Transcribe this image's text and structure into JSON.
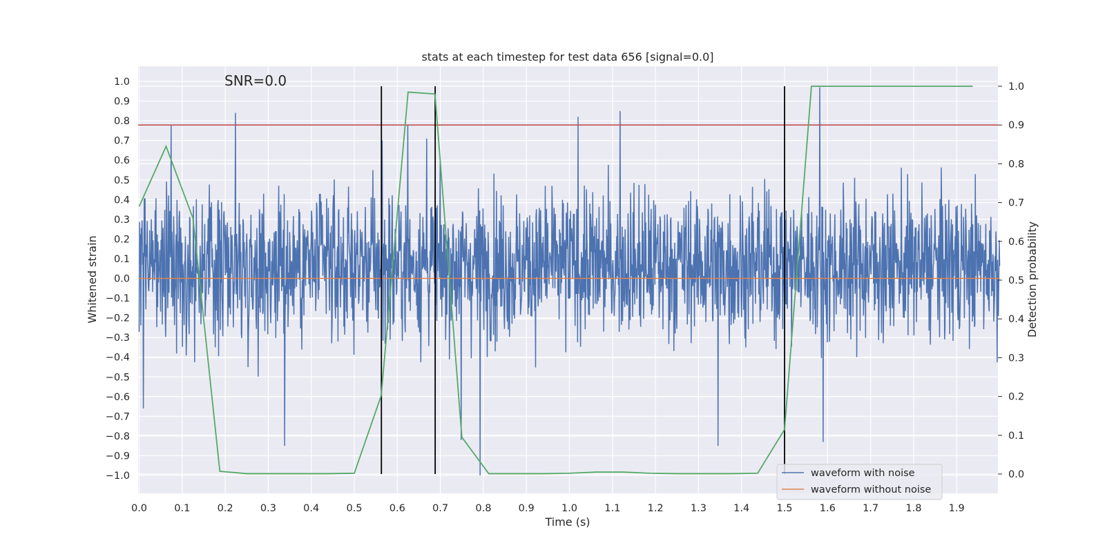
{
  "chart_data": {
    "type": "line",
    "title": "stats at each timestep for test data 656 [signal=0.0]",
    "annotation": "SNR=0.0",
    "xlabel": "Time (s)",
    "ylabel_left": "Whitened strain",
    "ylabel_right": "Detection probability",
    "xlim": [
      0.0,
      2.0
    ],
    "ylim_left": [
      -1.1,
      1.1
    ],
    "ylim_right": [
      -0.05,
      1.03
    ],
    "x_ticks": [
      "0.0",
      "0.1",
      "0.2",
      "0.3",
      "0.4",
      "0.5",
      "0.6",
      "0.7",
      "0.8",
      "0.9",
      "1.0",
      "1.1",
      "1.2",
      "1.3",
      "1.4",
      "1.5",
      "1.6",
      "1.7",
      "1.8",
      "1.9"
    ],
    "y_left_ticks": [
      "1.0",
      "0.9",
      "0.8",
      "0.7",
      "0.6",
      "0.5",
      "0.4",
      "0.3",
      "0.2",
      "0.1",
      "0.0",
      "−0.1",
      "−0.2",
      "−0.3",
      "−0.4",
      "−0.5",
      "−0.6",
      "−0.7",
      "−0.8",
      "−0.9",
      "−1.0"
    ],
    "y_right_ticks": [
      "1.0",
      "0.9",
      "0.8",
      "0.7",
      "0.6",
      "0.5",
      "0.4",
      "0.3",
      "0.2",
      "0.1",
      "0.0"
    ],
    "grid": true,
    "threshold_line": {
      "y": 0.9,
      "axis": "right",
      "color": "#c44e52"
    },
    "vertical_lines": [
      0.563,
      0.688,
      1.5
    ],
    "series": [
      {
        "name": "waveform with noise",
        "axis": "left",
        "color": "#4c72b0",
        "style": "dense noise",
        "duration": 2.0,
        "samples": 2048,
        "amplitude_range": [
          -1.0,
          0.97
        ],
        "seed": 656,
        "spikes": [
          {
            "x": 0.074,
            "y": 0.78
          },
          {
            "x": 0.224,
            "y": 0.84
          },
          {
            "x": 0.338,
            "y": -0.85
          },
          {
            "x": 0.565,
            "y": 0.7
          },
          {
            "x": 0.624,
            "y": 0.78
          },
          {
            "x": 0.668,
            "y": 0.71
          },
          {
            "x": 0.748,
            "y": -0.82
          },
          {
            "x": 0.792,
            "y": -1.0
          },
          {
            "x": 1.02,
            "y": 0.82
          },
          {
            "x": 1.118,
            "y": 0.85
          },
          {
            "x": 1.345,
            "y": -0.85
          },
          {
            "x": 1.582,
            "y": 0.97
          },
          {
            "x": 1.59,
            "y": -0.83
          },
          {
            "x": 0.01,
            "y": -0.66
          }
        ]
      },
      {
        "name": "waveform without noise",
        "axis": "left",
        "color": "#dd8452",
        "x": [
          0.0,
          2.0
        ],
        "y": [
          0.0,
          0.0
        ]
      },
      {
        "name": "detection probability",
        "axis": "right",
        "color": "#55a868",
        "x": [
          0.0,
          0.0625,
          0.125,
          0.1875,
          0.25,
          0.3125,
          0.375,
          0.4375,
          0.5,
          0.5625,
          0.625,
          0.6875,
          0.75,
          0.8125,
          0.875,
          0.9375,
          1.0,
          1.0625,
          1.125,
          1.1875,
          1.25,
          1.3125,
          1.375,
          1.4375,
          1.5,
          1.5625,
          1.625,
          1.6875,
          1.75,
          1.8125,
          1.875,
          1.9375
        ],
        "y": [
          0.69,
          0.845,
          0.66,
          0.007,
          0.001,
          0.001,
          0.001,
          0.001,
          0.002,
          0.202,
          0.985,
          0.98,
          0.095,
          0.001,
          0.001,
          0.001,
          0.002,
          0.005,
          0.005,
          0.002,
          0.001,
          0.001,
          0.001,
          0.002,
          0.115,
          1.0,
          1.0,
          1.0,
          1.0,
          1.0,
          1.0,
          1.0
        ]
      }
    ]
  },
  "legend": {
    "items": [
      {
        "label": "waveform with noise",
        "color": "#4c72b0"
      },
      {
        "label": "waveform without noise",
        "color": "#dd8452"
      }
    ]
  }
}
